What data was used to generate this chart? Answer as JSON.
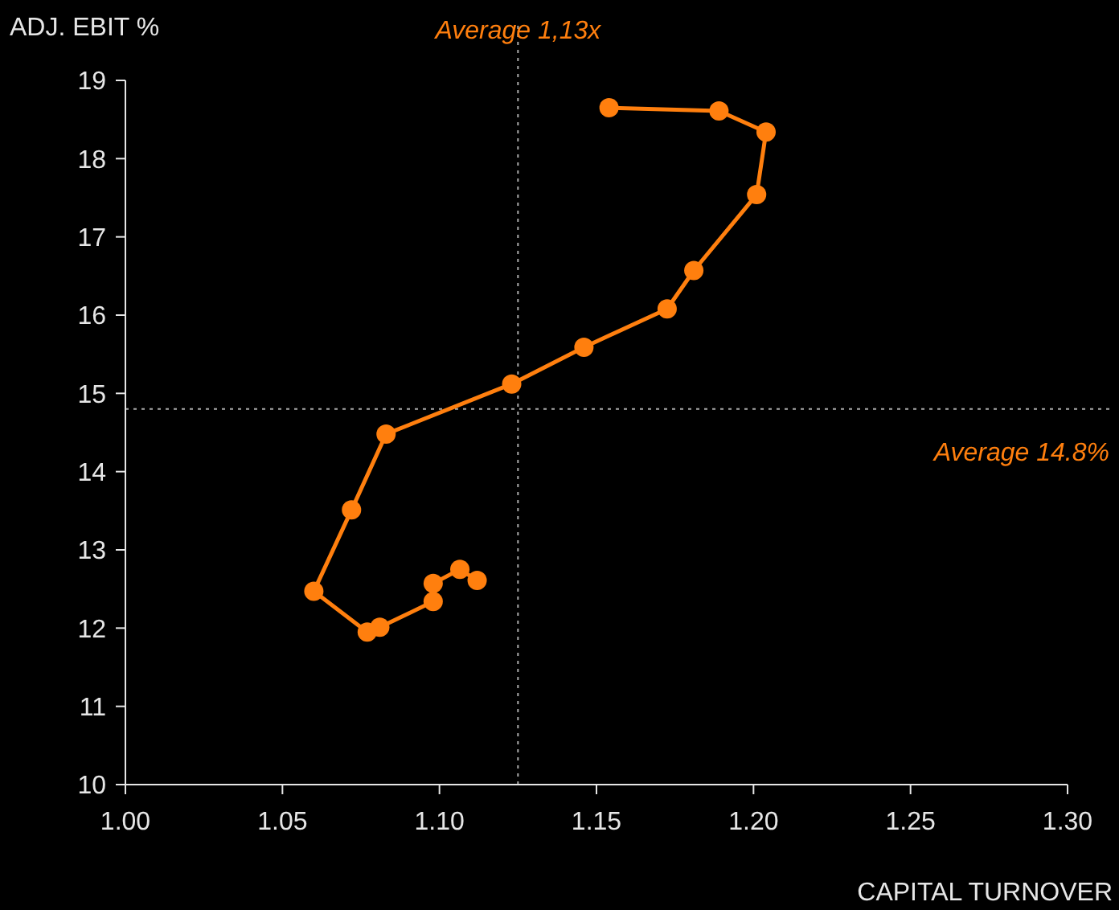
{
  "chart_data": {
    "type": "line",
    "xlabel": "CAPITAL TURNOVER",
    "ylabel": "ADJ. EBIT %",
    "marker": "circle",
    "line_style": "solid",
    "grid": false,
    "xlim": [
      1.0,
      1.3
    ],
    "xticks": [
      {
        "value": 1.0,
        "label": "1.00"
      },
      {
        "value": 1.05,
        "label": "1.05"
      },
      {
        "value": 1.1,
        "label": "1.10"
      },
      {
        "value": 1.15,
        "label": "1.15"
      },
      {
        "value": 1.2,
        "label": "1.20"
      },
      {
        "value": 1.25,
        "label": "1.25"
      },
      {
        "value": 1.3,
        "label": "1.30"
      }
    ],
    "ylim": [
      10,
      19
    ],
    "yticks": [
      10,
      11,
      12,
      13,
      14,
      15,
      16,
      17,
      18,
      19
    ],
    "series": [
      {
        "color": "#ff7f0e",
        "x": [
          1.112,
          1.1065,
          1.098,
          1.098,
          1.081,
          1.077,
          1.06,
          1.072,
          1.083,
          1.123,
          1.146,
          1.1725,
          1.181,
          1.201,
          1.204,
          1.189,
          1.154
        ],
        "values": [
          12.61,
          12.75,
          12.57,
          12.34,
          12.01,
          11.95,
          12.47,
          13.51,
          14.48,
          15.12,
          15.59,
          16.08,
          16.57,
          17.54,
          18.34,
          18.61,
          18.65
        ]
      }
    ],
    "ref_lines": [
      {
        "axis": "x",
        "value": 1.125,
        "label": "Average 1,13x",
        "color": "#aaaaaa",
        "line_style": "dotted"
      },
      {
        "axis": "y",
        "value": 14.8,
        "label": "Average 14.8%",
        "color": "#aaaaaa",
        "line_style": "dotted"
      }
    ]
  }
}
